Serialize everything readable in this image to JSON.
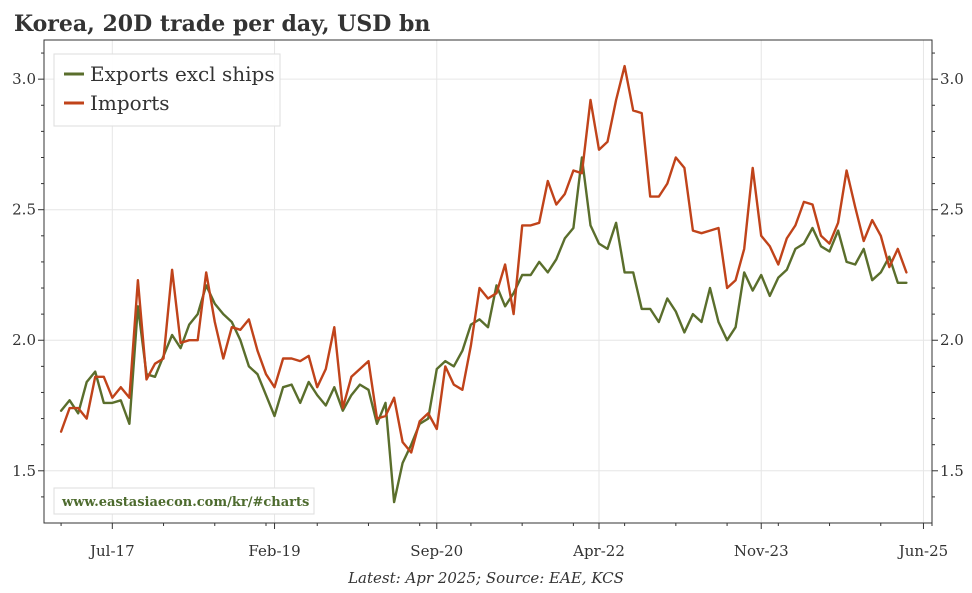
{
  "chart_data": {
    "type": "line",
    "title": "Korea, 20D trade per day, USD bn",
    "footer": "Latest: Apr 2025; Source: EAE, KCS",
    "watermark": "www.eastasiaecon.com/kr/#charts",
    "x_ticks": [
      "Jul-17",
      "Feb-19",
      "Sep-20",
      "Apr-22",
      "Nov-23",
      "Jun-25"
    ],
    "y_ticks": [
      "1.5",
      "2.0",
      "2.5",
      "3.0"
    ],
    "ylim": [
      1.3,
      3.15
    ],
    "xlim": [
      "2016-11",
      "2025-07"
    ],
    "grid": true,
    "legend_position": "top-left",
    "colors": {
      "exports": "#5a6e2c",
      "imports": "#c0431a"
    },
    "x": [
      "2017-01",
      "2017-02",
      "2017-03",
      "2017-04",
      "2017-05",
      "2017-06",
      "2017-07",
      "2017-08",
      "2017-09",
      "2017-10",
      "2017-11",
      "2017-12",
      "2018-01",
      "2018-02",
      "2018-03",
      "2018-04",
      "2018-05",
      "2018-06",
      "2018-07",
      "2018-08",
      "2018-09",
      "2018-10",
      "2018-11",
      "2018-12",
      "2019-01",
      "2019-02",
      "2019-03",
      "2019-04",
      "2019-05",
      "2019-06",
      "2019-07",
      "2019-08",
      "2019-09",
      "2019-10",
      "2019-11",
      "2019-12",
      "2020-01",
      "2020-02",
      "2020-03",
      "2020-04",
      "2020-05",
      "2020-06",
      "2020-07",
      "2020-08",
      "2020-09",
      "2020-10",
      "2020-11",
      "2020-12",
      "2021-01",
      "2021-02",
      "2021-03",
      "2021-04",
      "2021-05",
      "2021-06",
      "2021-07",
      "2021-08",
      "2021-09",
      "2021-10",
      "2021-11",
      "2021-12",
      "2022-01",
      "2022-02",
      "2022-03",
      "2022-04",
      "2022-05",
      "2022-06",
      "2022-07",
      "2022-08",
      "2022-09",
      "2022-10",
      "2022-11",
      "2022-12",
      "2023-01",
      "2023-02",
      "2023-03",
      "2023-04",
      "2023-05",
      "2023-06",
      "2023-07",
      "2023-08",
      "2023-09",
      "2023-10",
      "2023-11",
      "2023-12",
      "2024-01",
      "2024-02",
      "2024-03",
      "2024-04",
      "2024-05",
      "2024-06",
      "2024-07",
      "2024-08",
      "2024-09",
      "2024-10",
      "2024-11",
      "2024-12",
      "2025-01",
      "2025-02",
      "2025-03",
      "2025-04"
    ],
    "series": [
      {
        "name": "Exports excl ships",
        "key": "exports",
        "values": [
          1.73,
          1.77,
          1.72,
          1.84,
          1.88,
          1.76,
          1.76,
          1.77,
          1.68,
          2.13,
          1.87,
          1.86,
          1.94,
          2.02,
          1.97,
          2.06,
          2.1,
          2.21,
          2.14,
          2.1,
          2.07,
          2.0,
          1.9,
          1.87,
          1.79,
          1.71,
          1.82,
          1.83,
          1.76,
          1.84,
          1.79,
          1.75,
          1.82,
          1.73,
          1.79,
          1.83,
          1.81,
          1.68,
          1.76,
          1.38,
          1.53,
          1.6,
          1.68,
          1.7,
          1.89,
          1.92,
          1.9,
          1.96,
          2.06,
          2.08,
          2.05,
          2.21,
          2.13,
          2.18,
          2.25,
          2.25,
          2.3,
          2.26,
          2.31,
          2.39,
          2.43,
          2.7,
          2.44,
          2.37,
          2.35,
          2.45,
          2.26,
          2.26,
          2.12,
          2.12,
          2.07,
          2.16,
          2.11,
          2.03,
          2.1,
          2.07,
          2.2,
          2.07,
          2.0,
          2.05,
          2.26,
          2.19,
          2.25,
          2.17,
          2.24,
          2.27,
          2.35,
          2.37,
          2.43,
          2.36,
          2.34,
          2.42,
          2.3,
          2.29,
          2.35,
          2.23,
          2.26,
          2.32,
          2.22,
          2.22
        ]
      },
      {
        "name": "Imports",
        "key": "imports",
        "values": [
          1.65,
          1.74,
          1.74,
          1.7,
          1.86,
          1.86,
          1.78,
          1.82,
          1.78,
          2.23,
          1.85,
          1.91,
          1.93,
          2.27,
          1.99,
          2.0,
          2.0,
          2.26,
          2.07,
          1.93,
          2.05,
          2.04,
          2.08,
          1.96,
          1.87,
          1.82,
          1.93,
          1.93,
          1.92,
          1.94,
          1.82,
          1.89,
          2.05,
          1.74,
          1.86,
          1.89,
          1.92,
          1.7,
          1.71,
          1.78,
          1.61,
          1.57,
          1.69,
          1.72,
          1.66,
          1.9,
          1.83,
          1.81,
          1.98,
          2.2,
          2.16,
          2.18,
          2.29,
          2.1,
          2.44,
          2.44,
          2.45,
          2.61,
          2.52,
          2.56,
          2.65,
          2.64,
          2.92,
          2.73,
          2.76,
          2.92,
          3.05,
          2.88,
          2.87,
          2.55,
          2.55,
          2.6,
          2.7,
          2.66,
          2.42,
          2.41,
          2.42,
          2.43,
          2.2,
          2.23,
          2.35,
          2.66,
          2.4,
          2.36,
          2.29,
          2.39,
          2.44,
          2.53,
          2.52,
          2.4,
          2.37,
          2.45,
          2.65,
          2.51,
          2.38,
          2.46,
          2.4,
          2.28,
          2.35,
          2.26
        ]
      }
    ]
  }
}
